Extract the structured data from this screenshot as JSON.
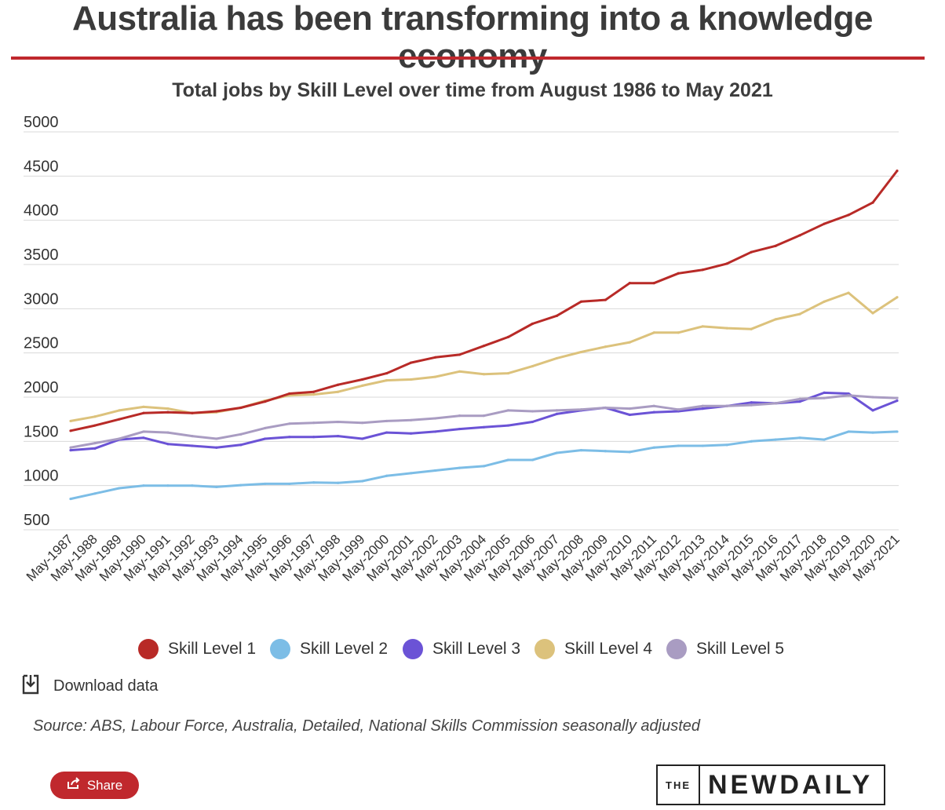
{
  "page": {
    "headline": "Australia has been transforming into a knowledge economy",
    "source": "Source:  ABS, Labour Force, Australia, Detailed, National Skills Commission seasonally adjusted",
    "download_label": "Download data",
    "share_label": "Share",
    "logo": {
      "the": "THE",
      "name": "NEWDAILY"
    },
    "accent_color": "#c0282d"
  },
  "icons": {
    "download": "download-icon",
    "share": "share-icon"
  },
  "chart_data": {
    "type": "line",
    "title": "Total jobs by Skill Level over time from August 1986 to May 2021",
    "xlabel": "",
    "ylabel": "",
    "ylim": [
      500,
      5000
    ],
    "yticks": [
      5000,
      4500,
      4000,
      3500,
      3000,
      2500,
      2000,
      1500,
      1000,
      500
    ],
    "grid": true,
    "legend_position": "bottom",
    "x": [
      "May-1987",
      "May-1988",
      "May-1989",
      "May-1990",
      "May-1991",
      "May-1992",
      "May-1993",
      "May-1994",
      "May-1995",
      "May-1996",
      "May-1997",
      "May-1998",
      "May-1999",
      "May-2000",
      "May-2001",
      "May-2002",
      "May-2003",
      "May-2004",
      "May-2005",
      "May-2006",
      "May-2007",
      "May-2008",
      "May-2009",
      "May-2010",
      "May-2011",
      "May-2012",
      "May-2013",
      "May-2014",
      "May-2015",
      "May-2016",
      "May-2017",
      "May-2018",
      "May-2019",
      "May-2020",
      "May-2021"
    ],
    "series": [
      {
        "name": "Skill Level 1",
        "color": "#b82a27",
        "values": [
          1620,
          1680,
          1750,
          1820,
          1830,
          1820,
          1840,
          1880,
          1950,
          2040,
          2060,
          2140,
          2200,
          2270,
          2390,
          2450,
          2480,
          2580,
          2680,
          2830,
          2920,
          3080,
          3100,
          3290,
          3290,
          3400,
          3440,
          3510,
          3640,
          3710,
          3830,
          3960,
          4060,
          4200,
          4560
        ]
      },
      {
        "name": "Skill Level 2",
        "color": "#7cbde6",
        "values": [
          850,
          910,
          970,
          1000,
          1000,
          1000,
          985,
          1005,
          1020,
          1020,
          1035,
          1030,
          1050,
          1110,
          1140,
          1170,
          1200,
          1220,
          1290,
          1290,
          1370,
          1400,
          1390,
          1380,
          1430,
          1450,
          1450,
          1460,
          1500,
          1520,
          1540,
          1520,
          1610,
          1600,
          1610
        ]
      },
      {
        "name": "Skill Level 3",
        "color": "#6b53d6",
        "values": [
          1400,
          1420,
          1520,
          1540,
          1470,
          1450,
          1430,
          1460,
          1530,
          1550,
          1550,
          1560,
          1530,
          1600,
          1590,
          1610,
          1640,
          1660,
          1680,
          1720,
          1810,
          1850,
          1880,
          1800,
          1830,
          1840,
          1870,
          1900,
          1940,
          1930,
          1950,
          2050,
          2040,
          1850,
          1960
        ]
      },
      {
        "name": "Skill Level 4",
        "color": "#dcc27c",
        "values": [
          1730,
          1780,
          1850,
          1890,
          1870,
          1820,
          1830,
          1880,
          1960,
          2020,
          2030,
          2060,
          2130,
          2190,
          2200,
          2230,
          2290,
          2260,
          2270,
          2350,
          2440,
          2510,
          2570,
          2620,
          2730,
          2730,
          2800,
          2780,
          2770,
          2880,
          2940,
          3080,
          3180,
          2950,
          3130
        ]
      },
      {
        "name": "Skill Level 5",
        "color": "#a99cc2",
        "values": [
          1430,
          1480,
          1530,
          1610,
          1600,
          1560,
          1530,
          1580,
          1650,
          1700,
          1710,
          1720,
          1710,
          1730,
          1740,
          1760,
          1790,
          1790,
          1850,
          1840,
          1850,
          1860,
          1880,
          1870,
          1900,
          1860,
          1900,
          1900,
          1910,
          1930,
          1980,
          1990,
          2020,
          2000,
          1990
        ]
      }
    ]
  }
}
